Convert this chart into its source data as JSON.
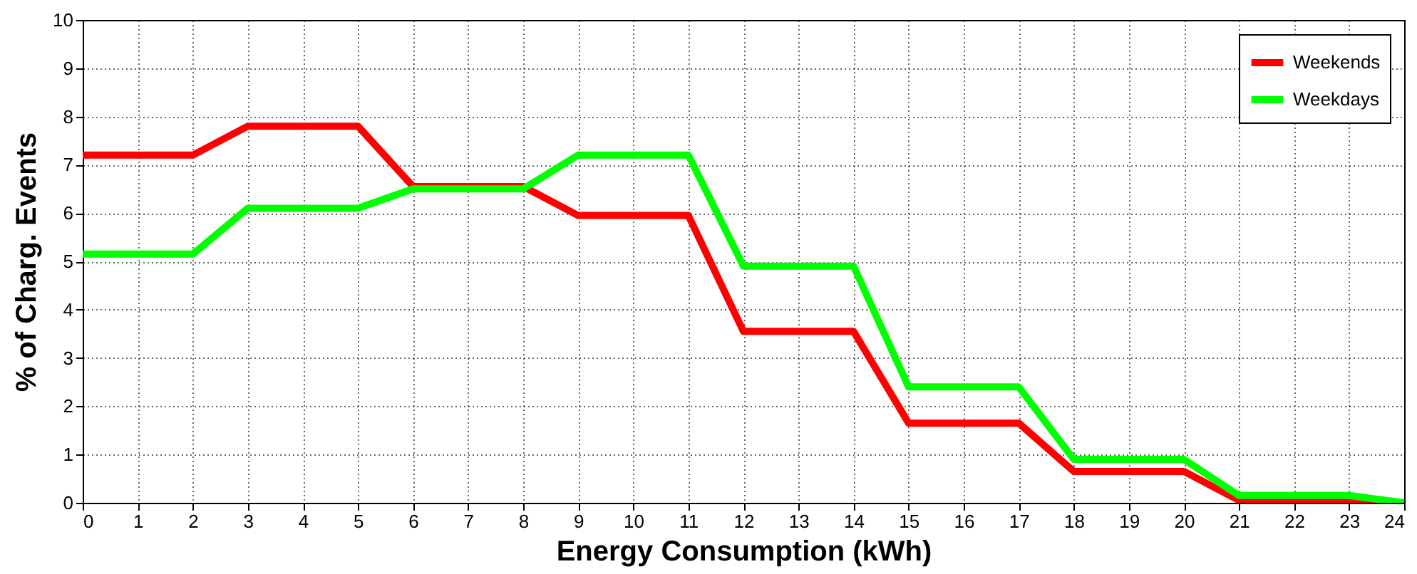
{
  "chart_data": {
    "type": "line",
    "xlabel": "Energy Consumption (kWh)",
    "ylabel": "% of Charg. Events",
    "x": [
      0,
      1,
      2,
      3,
      4,
      5,
      6,
      7,
      8,
      9,
      10,
      11,
      12,
      13,
      14,
      15,
      16,
      17,
      18,
      19,
      20,
      21,
      22,
      23,
      24
    ],
    "series": [
      {
        "name": "Weekends",
        "color": "#ff0000",
        "values": [
          7.2,
          7.2,
          7.2,
          7.8,
          7.8,
          7.8,
          6.55,
          6.55,
          6.55,
          5.95,
          5.95,
          5.95,
          3.55,
          3.55,
          3.55,
          1.65,
          1.65,
          1.65,
          0.65,
          0.65,
          0.65,
          0.05,
          0.05,
          0.05,
          0
        ]
      },
      {
        "name": "Weekdays",
        "color": "#00ff00",
        "values": [
          5.15,
          5.15,
          5.15,
          6.1,
          6.1,
          6.1,
          6.5,
          6.5,
          6.5,
          7.2,
          7.2,
          7.2,
          4.9,
          4.9,
          4.9,
          2.4,
          2.4,
          2.4,
          0.9,
          0.9,
          0.9,
          0.15,
          0.15,
          0.15,
          0
        ]
      }
    ],
    "xlim": [
      0,
      24
    ],
    "xticks": [
      0,
      1,
      2,
      3,
      4,
      5,
      6,
      7,
      8,
      9,
      10,
      11,
      12,
      13,
      14,
      15,
      16,
      17,
      18,
      19,
      20,
      21,
      22,
      23,
      24
    ],
    "ylim": [
      0,
      10
    ],
    "yticks": [
      0,
      1,
      2,
      3,
      4,
      5,
      6,
      7,
      8,
      9,
      10
    ],
    "grid": true,
    "legend": "top right",
    "marker": "none",
    "line_style": "solid"
  }
}
